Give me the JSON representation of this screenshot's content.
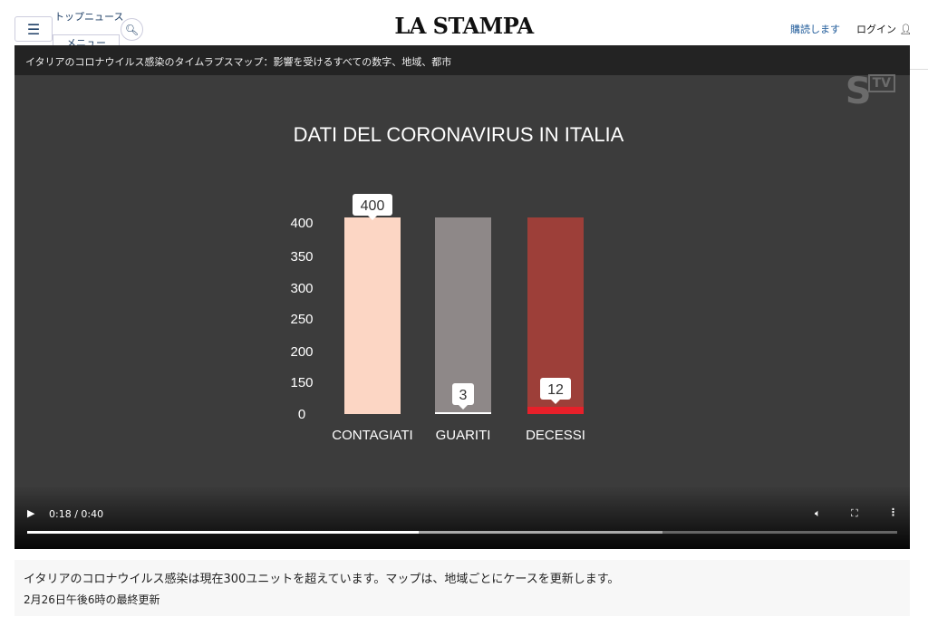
{
  "header": {
    "menu_label": "メニュー",
    "top_news": "トップニュース",
    "logo": "LA STAMPA",
    "subscribe": "購読します",
    "login": "ログイン"
  },
  "video": {
    "title": "イタリアのコロナウイルス感染のタイムラプスマップ：影響を受けるすべての数字、地域、都市",
    "watermark": "S",
    "watermark_badge": "TV",
    "time": "0:18 / 0:40",
    "played_fraction": 0.45,
    "buffered_fraction": 0.73
  },
  "chart_data": {
    "type": "bar",
    "title": "DATI DEL CORONAVIRUS IN ITALIA",
    "categories": [
      "CONTAGIATI",
      "GUARITI",
      "DECESSI"
    ],
    "values": [
      400,
      3,
      12
    ],
    "data_labels": [
      "400",
      "3",
      "12"
    ],
    "yticks": [
      0,
      150,
      200,
      250,
      300,
      350,
      400
    ],
    "ylim": [
      0,
      400
    ],
    "colors": {
      "column": [
        "#fcd6c4",
        "#8e8888",
        "#9d3f39"
      ],
      "fill": [
        "#fcd6c4",
        "#ffffff",
        "#e8202a"
      ]
    }
  },
  "caption": {
    "text": "イタリアのコロナウイルス感染は現在300ユニットを超えています。マップは、地域ごとにケースを更新します。",
    "updated": "2月26日午後6時の最終更新"
  }
}
